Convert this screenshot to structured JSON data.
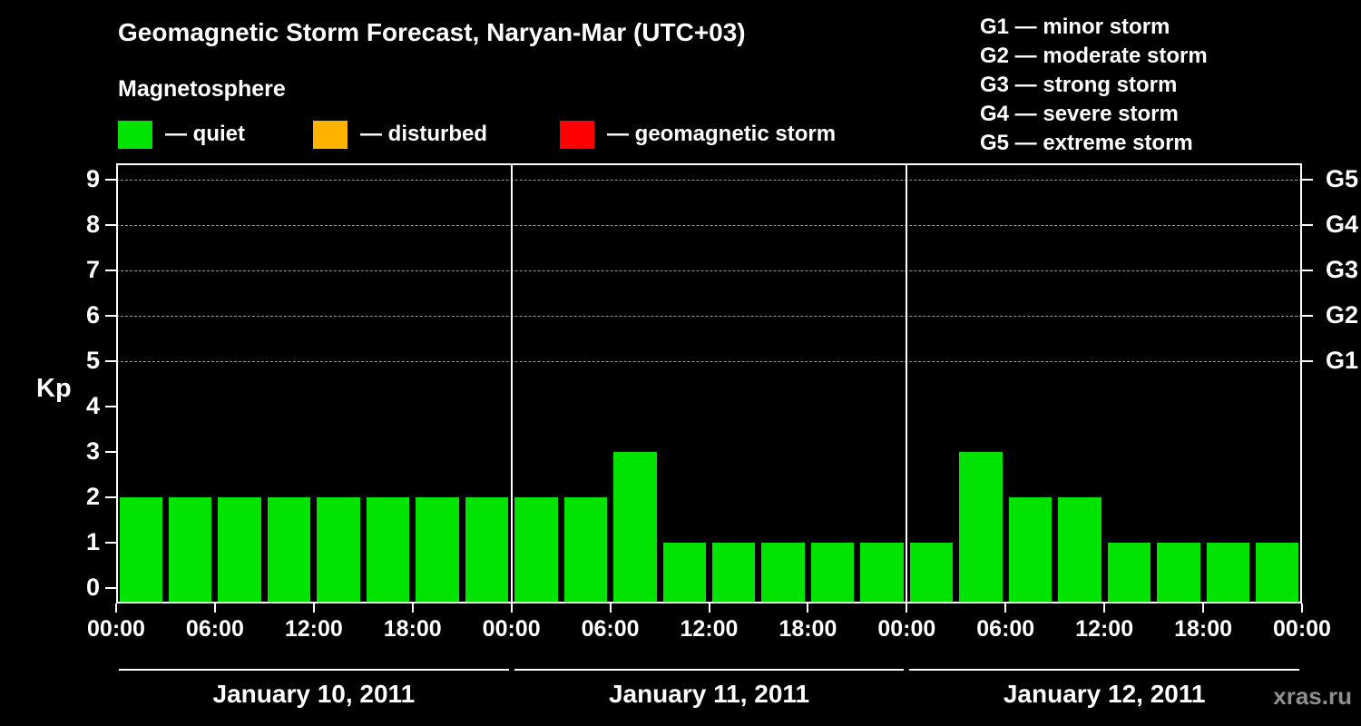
{
  "title": "Geomagnetic Storm Forecast, Naryan-Mar (UTC+03)",
  "subtitle": "Magnetosphere",
  "watermark": "xras.ru",
  "legend": [
    {
      "name": "quiet",
      "label": "— quiet",
      "color": "#00e300"
    },
    {
      "name": "disturbed",
      "label": "— disturbed",
      "color": "#ffb300"
    },
    {
      "name": "storm",
      "label": "— geomagnetic storm",
      "color": "#ff0000"
    }
  ],
  "storm_scale": [
    "G1 — minor storm",
    "G2 — moderate storm",
    "G3 — strong storm",
    "G4 — severe storm",
    "G5 — extreme storm"
  ],
  "chart_data": {
    "type": "bar",
    "title": "Geomagnetic Storm Forecast, Naryan-Mar (UTC+03)",
    "ylabel": "Kp",
    "ylim": [
      0,
      9.5
    ],
    "y_ticks": [
      0,
      1,
      2,
      3,
      4,
      5,
      6,
      7,
      8,
      9
    ],
    "grid_levels": [
      5,
      6,
      7,
      8,
      9
    ],
    "right_ticks": [
      {
        "kp": 5,
        "label": "G1"
      },
      {
        "kp": 6,
        "label": "G2"
      },
      {
        "kp": 7,
        "label": "G3"
      },
      {
        "kp": 8,
        "label": "G4"
      },
      {
        "kp": 9,
        "label": "G5"
      }
    ],
    "bar_color": "#00e300",
    "interval_hours": 3,
    "x_tick_labels": [
      "00:00",
      "06:00",
      "12:00",
      "18:00"
    ],
    "x_axis_end_label": "00:00",
    "days": [
      {
        "date": "January 10, 2011",
        "values": [
          2,
          2,
          2,
          2,
          2,
          2,
          2,
          2
        ]
      },
      {
        "date": "January 11, 2011",
        "values": [
          2,
          2,
          3,
          1,
          1,
          1,
          1,
          1
        ]
      },
      {
        "date": "January 12, 2011",
        "values": [
          1,
          3,
          2,
          2,
          1,
          1,
          1,
          1
        ]
      }
    ]
  }
}
